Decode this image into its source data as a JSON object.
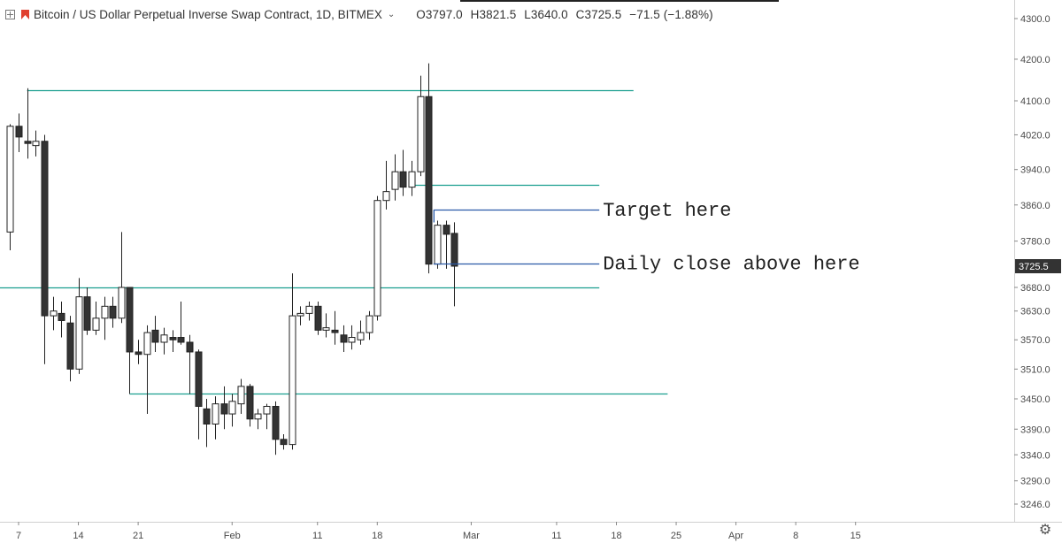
{
  "header": {
    "symbol_title": "Bitcoin / US Dollar Perpetual Inverse Swap Contract, 1D, BITMEX",
    "open": "O3797.0",
    "high": "H3821.5",
    "low": "L3640.0",
    "close": "C3725.5",
    "change": "−71.5 (−1.88%)"
  },
  "colors": {
    "horizontal_line": "#1a9e8f",
    "annotation_line": "#2a5aa8",
    "up_candle": "#ffffff",
    "down_candle": "#333333",
    "axis_border": "#d0d0d0",
    "price_label_bg": "#333333"
  },
  "icons": {
    "expand": "expand-icon",
    "logo": "bitmex-logo-icon",
    "settings": "gear-icon"
  },
  "chart_data": {
    "type": "candlestick",
    "y_scale": "log",
    "ylim": [
      3200,
      4330
    ],
    "y_ticks": [
      "4300.0",
      "4200.0",
      "4100.0",
      "4020.0",
      "3940.0",
      "3860.0",
      "3780.0",
      "3680.0",
      "3630.0",
      "3570.0",
      "3510.0",
      "3450.0",
      "3390.0",
      "3340.0",
      "3290.0",
      "3246.0"
    ],
    "x_ticks": [
      {
        "label": "7",
        "date": "2019-01-07"
      },
      {
        "label": "14",
        "date": "2019-01-14"
      },
      {
        "label": "21",
        "date": "2019-01-21"
      },
      {
        "label": "Feb",
        "date": "2019-02-01"
      },
      {
        "label": "11",
        "date": "2019-02-11"
      },
      {
        "label": "18",
        "date": "2019-02-18"
      },
      {
        "label": "Mar",
        "date": "2019-03-01"
      },
      {
        "label": "11",
        "date": "2019-03-11"
      },
      {
        "label": "18",
        "date": "2019-03-18"
      },
      {
        "label": "25",
        "date": "2019-03-25"
      },
      {
        "label": "Apr",
        "date": "2019-04-01"
      },
      {
        "label": "8",
        "date": "2019-04-08"
      },
      {
        "label": "15",
        "date": "2019-04-15"
      }
    ],
    "candles": [
      {
        "date": "2019-01-06",
        "o": 3800,
        "h": 4045,
        "l": 3760,
        "c": 4040
      },
      {
        "date": "2019-01-07",
        "o": 4040,
        "h": 4070,
        "l": 3980,
        "c": 4015
      },
      {
        "date": "2019-01-08",
        "o": 4005,
        "h": 4130,
        "l": 3965,
        "c": 4000
      },
      {
        "date": "2019-01-09",
        "o": 3995,
        "h": 4030,
        "l": 3970,
        "c": 4005
      },
      {
        "date": "2019-01-10",
        "o": 4005,
        "h": 4020,
        "l": 3520,
        "c": 3620
      },
      {
        "date": "2019-01-11",
        "o": 3620,
        "h": 3660,
        "l": 3590,
        "c": 3630
      },
      {
        "date": "2019-01-12",
        "o": 3625,
        "h": 3650,
        "l": 3575,
        "c": 3610
      },
      {
        "date": "2019-01-13",
        "o": 3605,
        "h": 3620,
        "l": 3485,
        "c": 3510
      },
      {
        "date": "2019-01-14",
        "o": 3510,
        "h": 3700,
        "l": 3500,
        "c": 3660
      },
      {
        "date": "2019-01-15",
        "o": 3660,
        "h": 3680,
        "l": 3580,
        "c": 3590
      },
      {
        "date": "2019-01-16",
        "o": 3590,
        "h": 3650,
        "l": 3580,
        "c": 3615
      },
      {
        "date": "2019-01-17",
        "o": 3615,
        "h": 3660,
        "l": 3570,
        "c": 3640
      },
      {
        "date": "2019-01-18",
        "o": 3640,
        "h": 3660,
        "l": 3595,
        "c": 3615
      },
      {
        "date": "2019-01-19",
        "o": 3615,
        "h": 3800,
        "l": 3605,
        "c": 3680
      },
      {
        "date": "2019-01-20",
        "o": 3680,
        "h": 3680,
        "l": 3460,
        "c": 3545
      },
      {
        "date": "2019-01-21",
        "o": 3545,
        "h": 3570,
        "l": 3520,
        "c": 3540
      },
      {
        "date": "2019-01-22",
        "o": 3540,
        "h": 3600,
        "l": 3420,
        "c": 3585
      },
      {
        "date": "2019-01-23",
        "o": 3590,
        "h": 3620,
        "l": 3545,
        "c": 3565
      },
      {
        "date": "2019-01-24",
        "o": 3565,
        "h": 3595,
        "l": 3540,
        "c": 3580
      },
      {
        "date": "2019-01-25",
        "o": 3575,
        "h": 3590,
        "l": 3545,
        "c": 3570
      },
      {
        "date": "2019-01-26",
        "o": 3575,
        "h": 3650,
        "l": 3560,
        "c": 3565
      },
      {
        "date": "2019-01-27",
        "o": 3565,
        "h": 3580,
        "l": 3460,
        "c": 3545
      },
      {
        "date": "2019-01-28",
        "o": 3545,
        "h": 3550,
        "l": 3370,
        "c": 3435
      },
      {
        "date": "2019-01-29",
        "o": 3430,
        "h": 3450,
        "l": 3355,
        "c": 3400
      },
      {
        "date": "2019-01-30",
        "o": 3400,
        "h": 3455,
        "l": 3370,
        "c": 3440
      },
      {
        "date": "2019-01-31",
        "o": 3440,
        "h": 3475,
        "l": 3390,
        "c": 3420
      },
      {
        "date": "2019-02-01",
        "o": 3420,
        "h": 3460,
        "l": 3395,
        "c": 3445
      },
      {
        "date": "2019-02-02",
        "o": 3440,
        "h": 3490,
        "l": 3420,
        "c": 3475
      },
      {
        "date": "2019-02-03",
        "o": 3475,
        "h": 3480,
        "l": 3395,
        "c": 3410
      },
      {
        "date": "2019-02-04",
        "o": 3410,
        "h": 3430,
        "l": 3390,
        "c": 3420
      },
      {
        "date": "2019-02-05",
        "o": 3420,
        "h": 3440,
        "l": 3390,
        "c": 3435
      },
      {
        "date": "2019-02-06",
        "o": 3435,
        "h": 3445,
        "l": 3340,
        "c": 3370
      },
      {
        "date": "2019-02-07",
        "o": 3370,
        "h": 3380,
        "l": 3350,
        "c": 3360
      },
      {
        "date": "2019-02-08",
        "o": 3360,
        "h": 3710,
        "l": 3350,
        "c": 3620
      },
      {
        "date": "2019-02-09",
        "o": 3620,
        "h": 3640,
        "l": 3600,
        "c": 3625
      },
      {
        "date": "2019-02-10",
        "o": 3625,
        "h": 3650,
        "l": 3610,
        "c": 3640
      },
      {
        "date": "2019-02-11",
        "o": 3640,
        "h": 3650,
        "l": 3580,
        "c": 3590
      },
      {
        "date": "2019-02-12",
        "o": 3590,
        "h": 3625,
        "l": 3575,
        "c": 3595
      },
      {
        "date": "2019-02-13",
        "o": 3590,
        "h": 3630,
        "l": 3560,
        "c": 3585
      },
      {
        "date": "2019-02-14",
        "o": 3580,
        "h": 3600,
        "l": 3545,
        "c": 3565
      },
      {
        "date": "2019-02-15",
        "o": 3565,
        "h": 3600,
        "l": 3550,
        "c": 3575
      },
      {
        "date": "2019-02-16",
        "o": 3570,
        "h": 3610,
        "l": 3560,
        "c": 3585
      },
      {
        "date": "2019-02-17",
        "o": 3585,
        "h": 3630,
        "l": 3570,
        "c": 3620
      },
      {
        "date": "2019-02-18",
        "o": 3620,
        "h": 3880,
        "l": 3610,
        "c": 3870
      },
      {
        "date": "2019-02-19",
        "o": 3870,
        "h": 3960,
        "l": 3850,
        "c": 3890
      },
      {
        "date": "2019-02-20",
        "o": 3895,
        "h": 3975,
        "l": 3870,
        "c": 3935
      },
      {
        "date": "2019-02-21",
        "o": 3935,
        "h": 3985,
        "l": 3880,
        "c": 3900
      },
      {
        "date": "2019-02-22",
        "o": 3900,
        "h": 3960,
        "l": 3880,
        "c": 3935
      },
      {
        "date": "2019-02-23",
        "o": 3935,
        "h": 4160,
        "l": 3925,
        "c": 4110
      },
      {
        "date": "2019-02-24",
        "o": 4110,
        "h": 4190,
        "l": 3710,
        "c": 3730
      },
      {
        "date": "2019-02-25",
        "o": 3730,
        "h": 3825,
        "l": 3720,
        "c": 3815
      },
      {
        "date": "2019-02-26",
        "o": 3815,
        "h": 3825,
        "l": 3720,
        "c": 3795
      },
      {
        "date": "2019-02-27",
        "o": 3797,
        "h": 3821.5,
        "l": 3640,
        "c": 3725.5
      }
    ],
    "horizontal_lines": [
      {
        "price": 4125,
        "from": "2019-01-08",
        "to": "2019-03-20"
      },
      {
        "price": 3905,
        "from": "2019-02-22",
        "to": "2019-03-16"
      },
      {
        "price": 3680,
        "from": "2019-01-01",
        "to": "2019-03-16"
      },
      {
        "price": 3460,
        "from": "2019-01-20",
        "to": "2019-03-24"
      }
    ],
    "annotation_lines": [
      {
        "price": 3850,
        "from": "2019-02-25",
        "to": "2019-03-16",
        "tick": true
      },
      {
        "price": 3732,
        "from": "2019-02-25",
        "to": "2019-03-16",
        "tick": false
      }
    ],
    "annotations": [
      {
        "text": "Target here",
        "price": 3850,
        "date": "2019-03-16"
      },
      {
        "text": "Daily close above here",
        "price": 3732,
        "date": "2019-03-16"
      }
    ],
    "last_price": "3725.5",
    "last_price_value": 3725.5
  }
}
